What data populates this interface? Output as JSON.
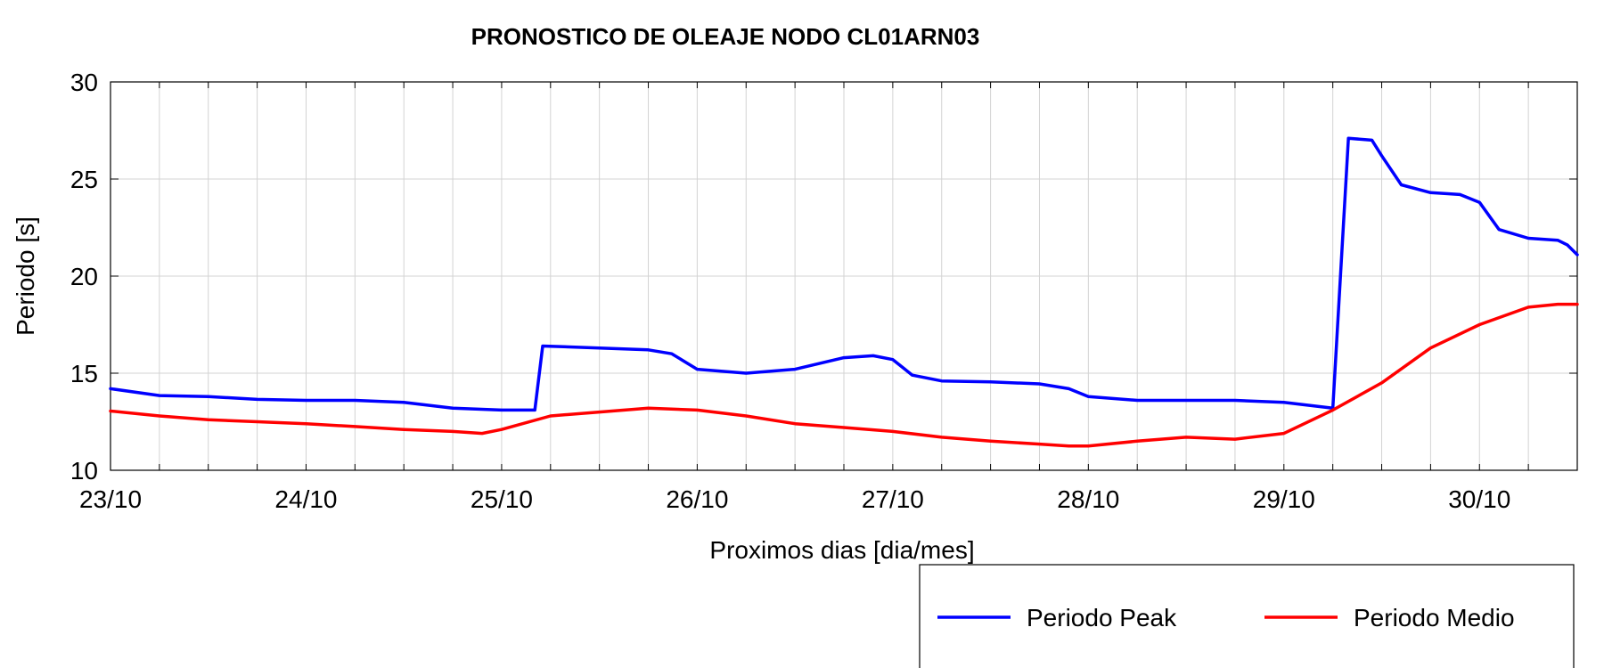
{
  "chart_data": {
    "type": "line",
    "title": "PRONOSTICO DE OLEAJE NODO CL01ARN03",
    "xlabel": "Proximos dias [dia/mes]",
    "ylabel": "Periodo [s]",
    "x_unit": "days since 23/10 00:00",
    "xlim": [
      0,
      7.5
    ],
    "ylim": [
      10,
      30
    ],
    "yticks": [
      10,
      15,
      20,
      25,
      30
    ],
    "xticks": [
      {
        "x": 0,
        "label": "23/10"
      },
      {
        "x": 1,
        "label": "24/10"
      },
      {
        "x": 2,
        "label": "25/10"
      },
      {
        "x": 3,
        "label": "26/10"
      },
      {
        "x": 4,
        "label": "27/10"
      },
      {
        "x": 5,
        "label": "28/10"
      },
      {
        "x": 6,
        "label": "29/10"
      },
      {
        "x": 7,
        "label": "30/10"
      }
    ],
    "grid": true,
    "legend_position": "bottom-right",
    "series": [
      {
        "name": "Periodo Peak",
        "color": "#0000ff",
        "points": [
          [
            0.0,
            14.2
          ],
          [
            0.25,
            13.85
          ],
          [
            0.5,
            13.8
          ],
          [
            0.75,
            13.65
          ],
          [
            1.0,
            13.6
          ],
          [
            1.25,
            13.6
          ],
          [
            1.5,
            13.5
          ],
          [
            1.75,
            13.2
          ],
          [
            2.0,
            13.1
          ],
          [
            2.17,
            13.1
          ],
          [
            2.21,
            16.4
          ],
          [
            2.5,
            16.3
          ],
          [
            2.75,
            16.2
          ],
          [
            2.87,
            16.0
          ],
          [
            3.0,
            15.2
          ],
          [
            3.25,
            15.0
          ],
          [
            3.5,
            15.2
          ],
          [
            3.75,
            15.8
          ],
          [
            3.9,
            15.9
          ],
          [
            4.0,
            15.7
          ],
          [
            4.1,
            14.9
          ],
          [
            4.25,
            14.6
          ],
          [
            4.5,
            14.55
          ],
          [
            4.75,
            14.45
          ],
          [
            4.9,
            14.2
          ],
          [
            5.0,
            13.8
          ],
          [
            5.25,
            13.6
          ],
          [
            5.5,
            13.6
          ],
          [
            5.75,
            13.6
          ],
          [
            6.0,
            13.5
          ],
          [
            6.25,
            13.2
          ],
          [
            6.33,
            27.1
          ],
          [
            6.45,
            27.0
          ],
          [
            6.5,
            26.2
          ],
          [
            6.6,
            24.7
          ],
          [
            6.75,
            24.3
          ],
          [
            6.9,
            24.2
          ],
          [
            7.0,
            23.8
          ],
          [
            7.1,
            22.4
          ],
          [
            7.25,
            21.95
          ],
          [
            7.4,
            21.85
          ],
          [
            7.45,
            21.6
          ],
          [
            7.5,
            21.1
          ]
        ]
      },
      {
        "name": "Periodo Medio",
        "color": "#ff0000",
        "points": [
          [
            0.0,
            13.05
          ],
          [
            0.25,
            12.8
          ],
          [
            0.5,
            12.6
          ],
          [
            0.75,
            12.5
          ],
          [
            1.0,
            12.4
          ],
          [
            1.25,
            12.25
          ],
          [
            1.5,
            12.1
          ],
          [
            1.75,
            12.0
          ],
          [
            1.9,
            11.9
          ],
          [
            2.0,
            12.1
          ],
          [
            2.25,
            12.8
          ],
          [
            2.5,
            13.0
          ],
          [
            2.75,
            13.2
          ],
          [
            3.0,
            13.1
          ],
          [
            3.25,
            12.8
          ],
          [
            3.5,
            12.4
          ],
          [
            3.75,
            12.2
          ],
          [
            4.0,
            12.0
          ],
          [
            4.25,
            11.7
          ],
          [
            4.5,
            11.5
          ],
          [
            4.75,
            11.35
          ],
          [
            4.9,
            11.25
          ],
          [
            5.0,
            11.25
          ],
          [
            5.25,
            11.5
          ],
          [
            5.5,
            11.7
          ],
          [
            5.75,
            11.6
          ],
          [
            6.0,
            11.9
          ],
          [
            6.25,
            13.1
          ],
          [
            6.5,
            14.5
          ],
          [
            6.75,
            16.3
          ],
          [
            7.0,
            17.5
          ],
          [
            7.25,
            18.4
          ],
          [
            7.4,
            18.55
          ],
          [
            7.5,
            18.55
          ]
        ]
      }
    ]
  }
}
